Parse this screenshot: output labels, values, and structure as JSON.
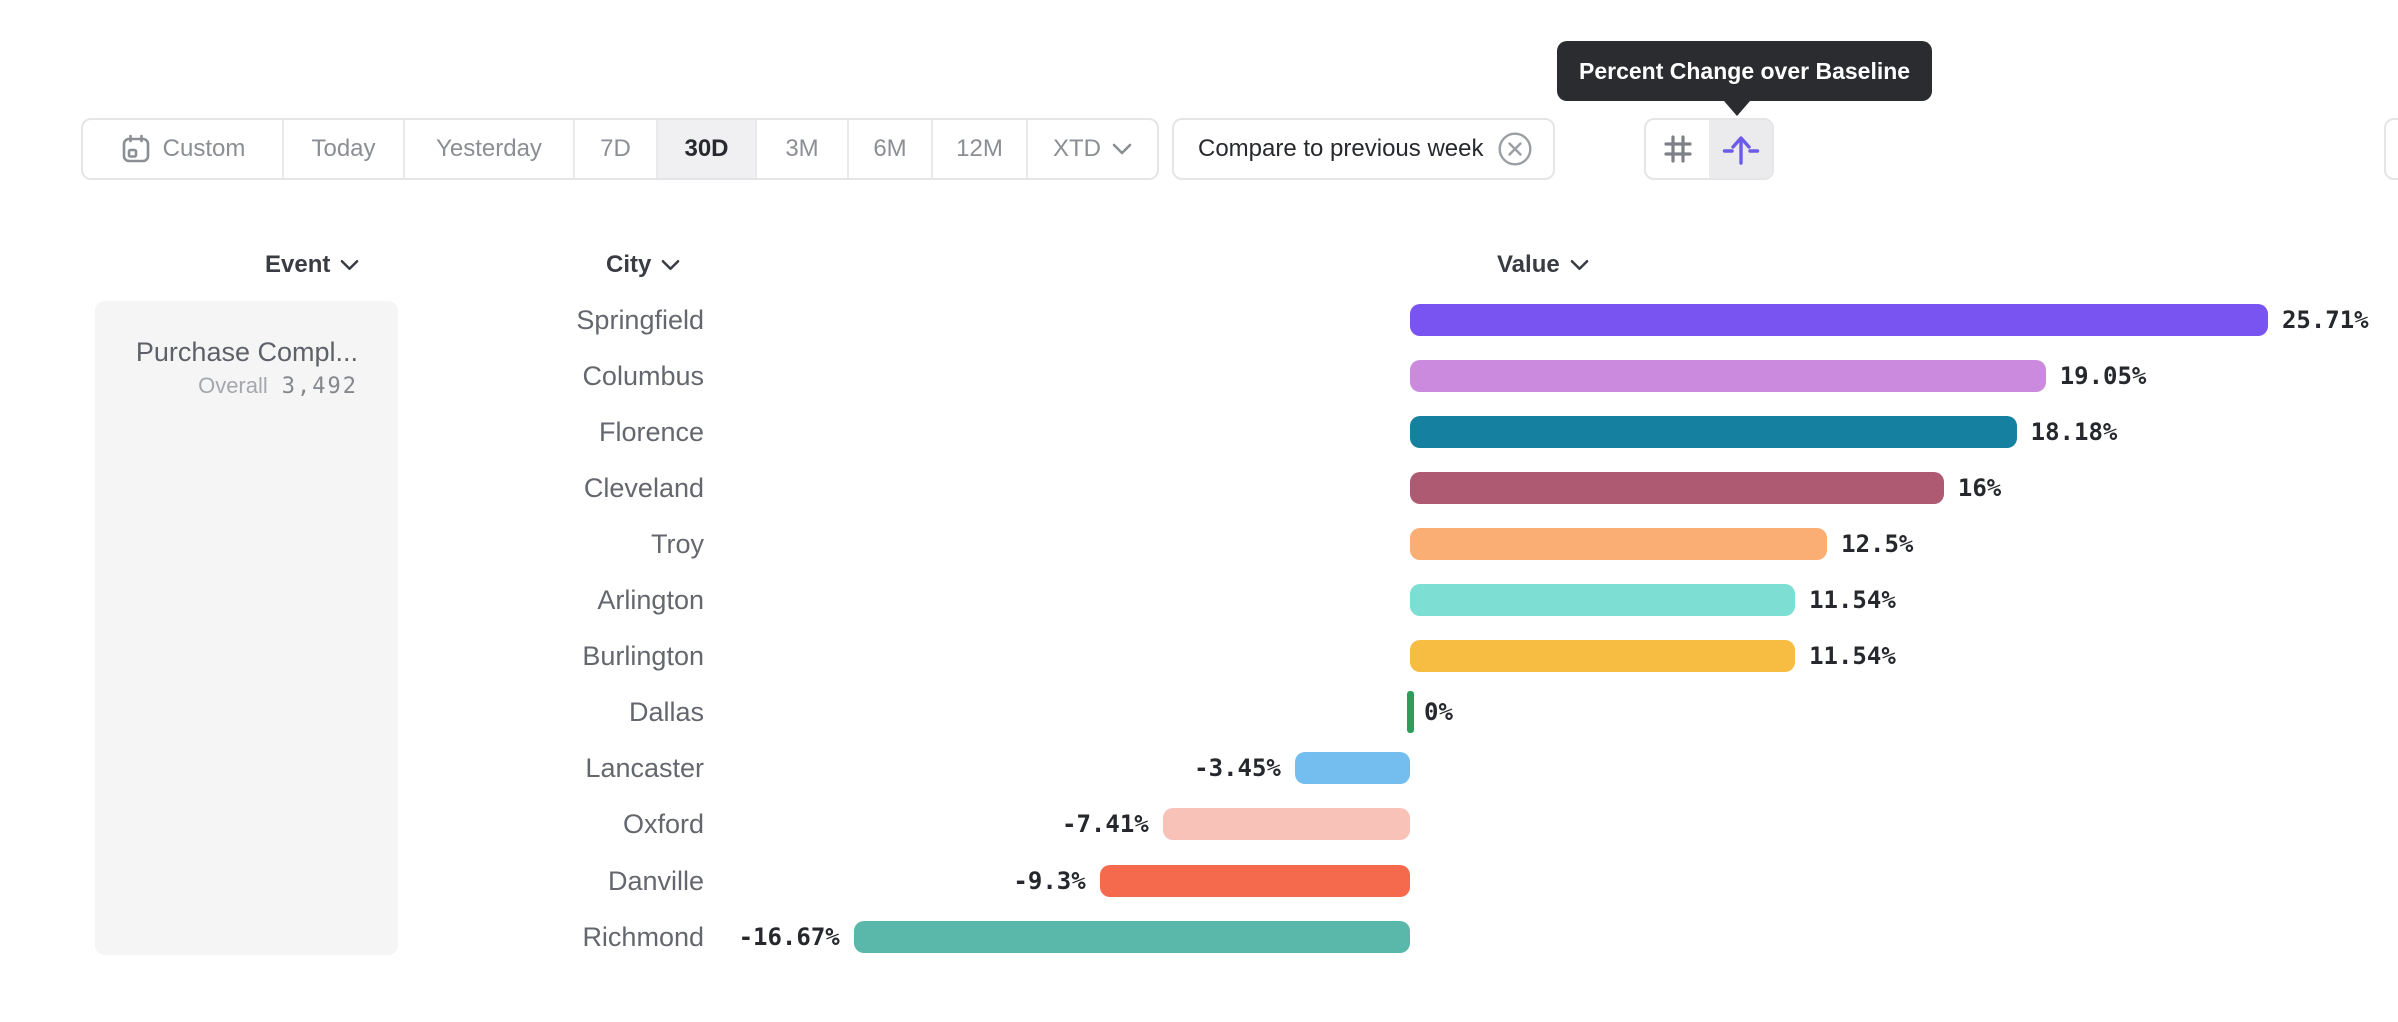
{
  "tooltip": {
    "text": "Percent Change over Baseline"
  },
  "toolbar": {
    "date_ranges": {
      "items": [
        {
          "label": "Custom",
          "icon": "calendar-icon",
          "selected": false
        },
        {
          "label": "Today",
          "selected": false
        },
        {
          "label": "Yesterday",
          "selected": false
        },
        {
          "label": "7D",
          "selected": false
        },
        {
          "label": "30D",
          "selected": true
        },
        {
          "label": "3M",
          "selected": false
        },
        {
          "label": "6M",
          "selected": false
        },
        {
          "label": "12M",
          "selected": false
        },
        {
          "label": "XTD",
          "icon": "chevron-down-icon",
          "selected": false
        }
      ]
    },
    "compare_chip": {
      "label": "Compare to previous week",
      "remove_icon": "close-circle-icon"
    },
    "value_display_toggle": {
      "options": [
        {
          "name": "absolute-numbers",
          "icon": "hash-icon",
          "selected": false
        },
        {
          "name": "percent-change-over-baseline",
          "icon": "baseline-up-arrow-icon",
          "selected": true
        }
      ]
    }
  },
  "columns": {
    "event": "Event",
    "city": "City",
    "value": "Value"
  },
  "event_panel": {
    "name": "Purchase Compl...",
    "overall_label": "Overall",
    "overall_value": "3,492"
  },
  "chart_data": {
    "type": "bar",
    "orientation": "horizontal",
    "unit": "%",
    "baseline": 0,
    "grid": false,
    "legend": false,
    "xlim": [
      -16.67,
      25.71
    ],
    "categories": [
      "Springfield",
      "Columbus",
      "Florence",
      "Cleveland",
      "Troy",
      "Arlington",
      "Burlington",
      "Dallas",
      "Lancaster",
      "Oxford",
      "Danville",
      "Richmond"
    ],
    "values": [
      25.71,
      19.05,
      18.18,
      16,
      12.5,
      11.54,
      11.54,
      0,
      -3.45,
      -7.41,
      -9.3,
      -16.67
    ],
    "labels": [
      "25.71%",
      "19.05%",
      "18.18%",
      "16%",
      "12.5%",
      "11.54%",
      "11.54%",
      "0%",
      "-3.45%",
      "-7.41%",
      "-9.3%",
      "-16.67%"
    ],
    "colors": [
      "#7a54f1",
      "#cb8add",
      "#15809f",
      "#ae5a73",
      "#fbae74",
      "#7ddfd3",
      "#f6bd42",
      "#2d9e59",
      "#73beee",
      "#f9c2b9",
      "#f5694c",
      "#59b8a9"
    ]
  },
  "colors": {
    "accent_purple": "#6c5be8",
    "tooltip_bg": "#2b2c2f",
    "selected_bg": "#f0f0f2",
    "border": "#e4e5e7"
  }
}
